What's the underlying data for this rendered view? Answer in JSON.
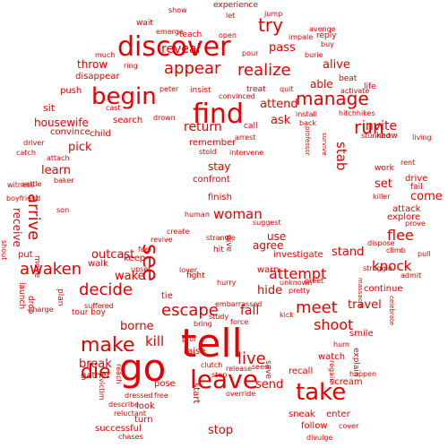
{
  "color": "#e60000",
  "background": "#ffffff",
  "words": [
    {
      "text": "tell",
      "size": 44,
      "rotate": false
    },
    {
      "text": "go",
      "size": 42,
      "rotate": false
    },
    {
      "text": "find",
      "size": 30,
      "rotate": false
    },
    {
      "text": "discover",
      "size": 30,
      "rotate": false
    },
    {
      "text": "begin",
      "size": 26,
      "rotate": false
    },
    {
      "text": "leave",
      "size": 28,
      "rotate": false
    },
    {
      "text": "take",
      "size": 26,
      "rotate": false
    },
    {
      "text": "see",
      "size": 24,
      "rotate": true
    },
    {
      "text": "make",
      "size": 22,
      "rotate": false
    },
    {
      "text": "die",
      "size": 22,
      "rotate": false
    },
    {
      "text": "manage",
      "size": 20,
      "rotate": false
    },
    {
      "text": "try",
      "size": 20,
      "rotate": false
    },
    {
      "text": "appear",
      "size": 18,
      "rotate": false
    },
    {
      "text": "realize",
      "size": 18,
      "rotate": false
    },
    {
      "text": "run",
      "size": 20,
      "rotate": false
    },
    {
      "text": "decide",
      "size": 18,
      "rotate": false
    },
    {
      "text": "awaken",
      "size": 18,
      "rotate": false
    },
    {
      "text": "escape",
      "size": 18,
      "rotate": false
    },
    {
      "text": "meet",
      "size": 18,
      "rotate": false
    },
    {
      "text": "live",
      "size": 18,
      "rotate": false
    },
    {
      "text": "arrive",
      "size": 18,
      "rotate": true
    },
    {
      "text": "attempt",
      "size": 16,
      "rotate": false
    },
    {
      "text": "shoot",
      "size": 16,
      "rotate": false
    },
    {
      "text": "flee",
      "size": 16,
      "rotate": false
    },
    {
      "text": "knock",
      "size": 15,
      "rotate": false
    },
    {
      "text": "woman",
      "size": 15,
      "rotate": false
    },
    {
      "text": "kill",
      "size": 15,
      "rotate": false
    },
    {
      "text": "fall",
      "size": 14,
      "rotate": false
    },
    {
      "text": "stab",
      "size": 15,
      "rotate": true
    },
    {
      "text": "invite",
      "size": 14,
      "rotate": false
    },
    {
      "text": "reveal",
      "size": 14,
      "rotate": false
    },
    {
      "text": "return",
      "size": 14,
      "rotate": false
    },
    {
      "text": "attend",
      "size": 13,
      "rotate": false
    },
    {
      "text": "alive",
      "size": 13,
      "rotate": false
    },
    {
      "text": "pass",
      "size": 13,
      "rotate": false
    },
    {
      "text": "wake",
      "size": 13,
      "rotate": false
    },
    {
      "text": "outcast",
      "size": 13,
      "rotate": false
    },
    {
      "text": "stand",
      "size": 13,
      "rotate": false
    },
    {
      "text": "hide",
      "size": 13,
      "rotate": false
    },
    {
      "text": "send",
      "size": 13,
      "rotate": false
    },
    {
      "text": "break",
      "size": 13,
      "rotate": false
    },
    {
      "text": "borne",
      "size": 13,
      "rotate": false
    },
    {
      "text": "travel",
      "size": 13,
      "rotate": false
    },
    {
      "text": "stop",
      "size": 13,
      "rotate": false
    },
    {
      "text": "learn",
      "size": 13,
      "rotate": false
    },
    {
      "text": "pick",
      "size": 13,
      "rotate": false
    },
    {
      "text": "set",
      "size": 13,
      "rotate": false
    },
    {
      "text": "come",
      "size": 13,
      "rotate": false
    },
    {
      "text": "ask",
      "size": 13,
      "rotate": false
    },
    {
      "text": "able",
      "size": 12,
      "rotate": false
    },
    {
      "text": "throw",
      "size": 12,
      "rotate": false
    },
    {
      "text": "stay",
      "size": 12,
      "rotate": false
    },
    {
      "text": "agree",
      "size": 12,
      "rotate": false
    },
    {
      "text": "use",
      "size": 12,
      "rotate": false
    },
    {
      "text": "receive",
      "size": 12,
      "rotate": true
    },
    {
      "text": "housewife",
      "size": 12,
      "rotate": false
    },
    {
      "text": "sit",
      "size": 11,
      "rotate": false
    },
    {
      "text": "push",
      "size": 10,
      "rotate": false
    },
    {
      "text": "disappear",
      "size": 10,
      "rotate": false
    },
    {
      "text": "convince",
      "size": 10,
      "rotate": false
    },
    {
      "text": "child",
      "size": 10,
      "rotate": false
    },
    {
      "text": "search",
      "size": 10,
      "rotate": false
    },
    {
      "text": "finish",
      "size": 10,
      "rotate": false
    },
    {
      "text": "confront",
      "size": 10,
      "rotate": false
    },
    {
      "text": "remember",
      "size": 10,
      "rotate": false
    },
    {
      "text": "investigate",
      "size": 10,
      "rotate": false
    },
    {
      "text": "warn",
      "size": 10,
      "rotate": false
    },
    {
      "text": "put",
      "size": 10,
      "rotate": false
    },
    {
      "text": "walk",
      "size": 10,
      "rotate": false
    },
    {
      "text": "keep",
      "size": 10,
      "rotate": false
    },
    {
      "text": "tie",
      "size": 10,
      "rotate": false
    },
    {
      "text": "continue",
      "size": 10,
      "rotate": false
    },
    {
      "text": "smile",
      "size": 10,
      "rotate": false
    },
    {
      "text": "recall",
      "size": 10,
      "rotate": false
    },
    {
      "text": "raise",
      "size": 10,
      "rotate": false
    },
    {
      "text": "pose",
      "size": 10,
      "rotate": false
    },
    {
      "text": "look",
      "size": 10,
      "rotate": false
    },
    {
      "text": "turn",
      "size": 10,
      "rotate": false
    },
    {
      "text": "successful",
      "size": 10,
      "rotate": false
    },
    {
      "text": "follow",
      "size": 10,
      "rotate": false
    },
    {
      "text": "sneak",
      "size": 10,
      "rotate": false
    },
    {
      "text": "enter",
      "size": 10,
      "rotate": false
    },
    {
      "text": "scream",
      "size": 10,
      "rotate": false
    },
    {
      "text": "watch",
      "size": 10,
      "rotate": false
    },
    {
      "text": "explain",
      "size": 9,
      "rotate": true
    },
    {
      "text": "save",
      "size": 9,
      "rotate": true
    },
    {
      "text": "start",
      "size": 10,
      "rotate": true
    },
    {
      "text": "gather",
      "size": 10,
      "rotate": false
    },
    {
      "text": "drive",
      "size": 10,
      "rotate": false
    },
    {
      "text": "attack",
      "size": 10,
      "rotate": false
    },
    {
      "text": "explore",
      "size": 10,
      "rotate": false
    },
    {
      "text": "work",
      "size": 9,
      "rotate": false
    },
    {
      "text": "know",
      "size": 9,
      "rotate": false
    },
    {
      "text": "fail",
      "size": 9,
      "rotate": false
    },
    {
      "text": "reply",
      "size": 9,
      "rotate": false
    },
    {
      "text": "beat",
      "size": 9,
      "rotate": false
    },
    {
      "text": "life",
      "size": 9,
      "rotate": false
    },
    {
      "text": "treat",
      "size": 9,
      "rotate": false
    },
    {
      "text": "insist",
      "size": 9,
      "rotate": false
    },
    {
      "text": "call",
      "size": 9,
      "rotate": false
    },
    {
      "text": "wait",
      "size": 9,
      "rotate": false
    },
    {
      "text": "teach",
      "size": 9,
      "rotate": false
    },
    {
      "text": "experience",
      "size": 9,
      "rotate": false
    },
    {
      "text": "tour boy",
      "size": 9,
      "rotate": false
    },
    {
      "text": "plan",
      "size": 9,
      "rotate": true
    },
    {
      "text": "fight",
      "size": 9,
      "rotate": false
    },
    {
      "text": "give",
      "size": 9,
      "rotate": true
    },
    {
      "text": "hit",
      "size": 9,
      "rotate": false
    },
    {
      "text": "suggest",
      "size": 8,
      "rotate": false
    },
    {
      "text": "greet",
      "size": 8,
      "rotate": false
    },
    {
      "text": "pretty",
      "size": 8,
      "rotate": false
    },
    {
      "text": "embarrassed",
      "size": 8,
      "rotate": false
    },
    {
      "text": "study",
      "size": 8,
      "rotate": false
    },
    {
      "text": "force",
      "size": 8,
      "rotate": false
    },
    {
      "text": "bring",
      "size": 8,
      "rotate": false
    },
    {
      "text": "prof",
      "size": 8,
      "rotate": false
    },
    {
      "text": "clutch",
      "size": 8,
      "rotate": false
    },
    {
      "text": "release",
      "size": 8,
      "rotate": false
    },
    {
      "text": "seem",
      "size": 8,
      "rotate": false
    },
    {
      "text": "step",
      "size": 8,
      "rotate": false
    },
    {
      "text": "override",
      "size": 8,
      "rotate": false
    },
    {
      "text": "dressed",
      "size": 8,
      "rotate": false
    },
    {
      "text": "free",
      "size": 8,
      "rotate": false
    },
    {
      "text": "reluctant",
      "size": 8,
      "rotate": false
    },
    {
      "text": "describe",
      "size": 8,
      "rotate": false
    },
    {
      "text": "chases",
      "size": 8,
      "rotate": false
    },
    {
      "text": "divulge",
      "size": 8,
      "rotate": false
    },
    {
      "text": "cover",
      "size": 8,
      "rotate": false
    },
    {
      "text": "hum",
      "size": 8,
      "rotate": false
    },
    {
      "text": "kick",
      "size": 8,
      "rotate": false
    },
    {
      "text": "regain",
      "size": 8,
      "rotate": true
    },
    {
      "text": "happen",
      "size": 8,
      "rotate": false
    },
    {
      "text": "massacre",
      "size": 7,
      "rotate": true
    },
    {
      "text": "celebrate",
      "size": 7,
      "rotate": true
    },
    {
      "text": "admit",
      "size": 8,
      "rotate": false
    },
    {
      "text": "pull",
      "size": 8,
      "rotate": false
    },
    {
      "text": "prove",
      "size": 8,
      "rotate": false
    },
    {
      "text": "climb",
      "size": 8,
      "rotate": false
    },
    {
      "text": "struggle",
      "size": 8,
      "rotate": false
    },
    {
      "text": "dispose",
      "size": 8,
      "rotate": false
    },
    {
      "text": "killer",
      "size": 8,
      "rotate": false
    },
    {
      "text": "rent",
      "size": 8,
      "rotate": false
    },
    {
      "text": "living",
      "size": 8,
      "rotate": false
    },
    {
      "text": "stunned",
      "size": 8,
      "rotate": false
    },
    {
      "text": "survive",
      "size": 7,
      "rotate": true
    },
    {
      "text": "professor",
      "size": 7,
      "rotate": true
    },
    {
      "text": "back",
      "size": 8,
      "rotate": false
    },
    {
      "text": "install",
      "size": 8,
      "rotate": false
    },
    {
      "text": "hitchhikes",
      "size": 8,
      "rotate": false
    },
    {
      "text": "activate",
      "size": 8,
      "rotate": false
    },
    {
      "text": "quit",
      "size": 8,
      "rotate": false
    },
    {
      "text": "buy",
      "size": 8,
      "rotate": false
    },
    {
      "text": "burie",
      "size": 8,
      "rotate": false
    },
    {
      "text": "impale",
      "size": 8,
      "rotate": false
    },
    {
      "text": "avenge",
      "size": 8,
      "rotate": false
    },
    {
      "text": "jump",
      "size": 8,
      "rotate": false
    },
    {
      "text": "let",
      "size": 8,
      "rotate": false
    },
    {
      "text": "show",
      "size": 8,
      "rotate": false
    },
    {
      "text": "emerge",
      "size": 8,
      "rotate": false
    },
    {
      "text": "open",
      "size": 8,
      "rotate": false
    },
    {
      "text": "pour",
      "size": 8,
      "rotate": false
    },
    {
      "text": "much",
      "size": 8,
      "rotate": false
    },
    {
      "text": "ring",
      "size": 8,
      "rotate": false
    },
    {
      "text": "peter",
      "size": 8,
      "rotate": false
    },
    {
      "text": "cast",
      "size": 8,
      "rotate": false
    },
    {
      "text": "convinced",
      "size": 8,
      "rotate": false
    },
    {
      "text": "drown",
      "size": 8,
      "rotate": false
    },
    {
      "text": "arrest",
      "size": 8,
      "rotate": false
    },
    {
      "text": "stold",
      "size": 8,
      "rotate": false
    },
    {
      "text": "intervene",
      "size": 8,
      "rotate": false
    },
    {
      "text": "driver",
      "size": 8,
      "rotate": false
    },
    {
      "text": "catch",
      "size": 8,
      "rotate": false
    },
    {
      "text": "attach",
      "size": 8,
      "rotate": false
    },
    {
      "text": "baker",
      "size": 8,
      "rotate": false
    },
    {
      "text": "witness",
      "size": 8,
      "rotate": false
    },
    {
      "text": "boyfriend",
      "size": 8,
      "rotate": false
    },
    {
      "text": "settle",
      "size": 8,
      "rotate": false
    },
    {
      "text": "son",
      "size": 8,
      "rotate": false
    },
    {
      "text": "shout",
      "size": 8,
      "rotate": true
    },
    {
      "text": "move",
      "size": 9,
      "rotate": true
    },
    {
      "text": "launch",
      "size": 9,
      "rotate": true
    },
    {
      "text": "drop",
      "size": 9,
      "rotate": true
    },
    {
      "text": "charge",
      "size": 8,
      "rotate": false
    },
    {
      "text": "suffered",
      "size": 8,
      "rotate": false
    },
    {
      "text": "feel",
      "size": 8,
      "rotate": false
    },
    {
      "text": "revive",
      "size": 8,
      "rotate": false
    },
    {
      "text": "create",
      "size": 8,
      "rotate": false
    },
    {
      "text": "human",
      "size": 8,
      "rotate": false
    },
    {
      "text": "strangle",
      "size": 8,
      "rotate": false
    },
    {
      "text": "upset",
      "size": 8,
      "rotate": false
    },
    {
      "text": "lover",
      "size": 8,
      "rotate": false
    },
    {
      "text": "hurry",
      "size": 8,
      "rotate": false
    },
    {
      "text": "unknown",
      "size": 8,
      "rotate": false
    },
    {
      "text": "reach",
      "size": 8,
      "rotate": true
    },
    {
      "text": "victim",
      "size": 8,
      "rotate": true
    },
    {
      "text": "barricade",
      "size": 8,
      "rotate": false
    },
    {
      "text": "capture",
      "size": 8,
      "rotate": true
    },
    {
      "text": "cheerleader",
      "size": 8,
      "rotate": true
    }
  ]
}
